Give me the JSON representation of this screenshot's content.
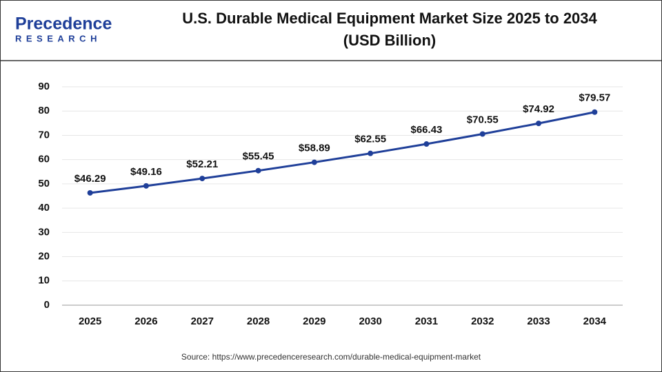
{
  "logo": {
    "name": "Precedence",
    "tagline": "RESEARCH"
  },
  "chart_data": {
    "type": "line",
    "title": "U.S. Durable Medical Equipment Market Size 2025 to 2034",
    "subtitle": "(USD Billion)",
    "categories": [
      "2025",
      "2026",
      "2027",
      "2028",
      "2029",
      "2030",
      "2031",
      "2032",
      "2033",
      "2034"
    ],
    "series": [
      {
        "name": "Market Size",
        "color": "#1f3f99",
        "values": [
          46.29,
          49.16,
          52.21,
          55.45,
          58.89,
          62.55,
          66.43,
          70.55,
          74.92,
          79.57
        ],
        "value_labels": [
          "$46.29",
          "$49.16",
          "$52.21",
          "$55.45",
          "$58.89",
          "$62.55",
          "$66.43",
          "$70.55",
          "$74.92",
          "$79.57"
        ]
      }
    ],
    "ylim": [
      0,
      90
    ],
    "yticks": [
      0,
      10,
      20,
      30,
      40,
      50,
      60,
      70,
      80,
      90
    ],
    "grid": true,
    "source": "Source: https://www.precedenceresearch.com/durable-medical-equipment-market"
  }
}
